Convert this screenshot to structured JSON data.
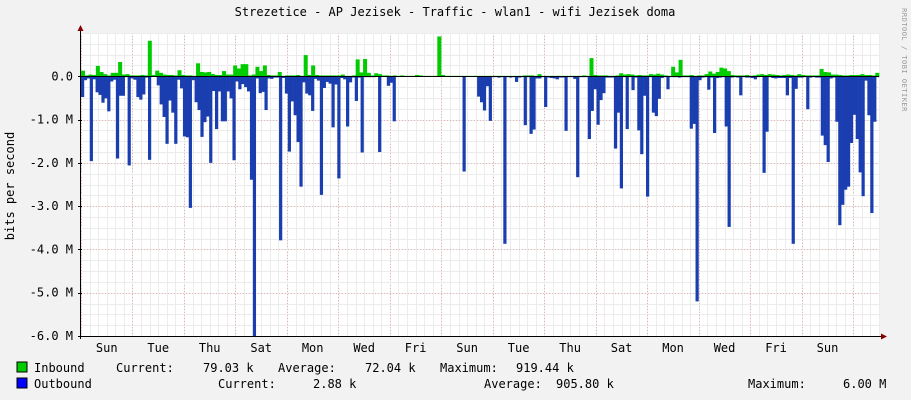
{
  "chart_data": {
    "type": "area",
    "title": "Strezetice - AP Jezisek - Traffic - wlan1 - wifi Jezisek doma",
    "ylabel": "bits per second",
    "vendor_label": "RRDTOOL / TOBI OETIKER",
    "ylim": [
      -6000000,
      1000000
    ],
    "y_ticks": [
      {
        "value": 0,
        "label": "0.0"
      },
      {
        "value": -1000000,
        "label": "-1.0 M"
      },
      {
        "value": -2000000,
        "label": "-2.0 M"
      },
      {
        "value": -3000000,
        "label": "-3.0 M"
      },
      {
        "value": -4000000,
        "label": "-4.0 M"
      },
      {
        "value": -5000000,
        "label": "-5.0 M"
      },
      {
        "value": -6000000,
        "label": "-6.0 M"
      }
    ],
    "x_range": [
      0,
      15.5
    ],
    "x_ticks": [
      {
        "value": 0.5,
        "label": "Sun"
      },
      {
        "value": 1.5,
        "label": "Tue"
      },
      {
        "value": 2.5,
        "label": "Thu"
      },
      {
        "value": 3.5,
        "label": "Sat"
      },
      {
        "value": 4.5,
        "label": "Mon"
      },
      {
        "value": 5.5,
        "label": "Wed"
      },
      {
        "value": 6.5,
        "label": "Fri"
      },
      {
        "value": 7.5,
        "label": "Sun"
      },
      {
        "value": 8.5,
        "label": "Tue"
      },
      {
        "value": 9.5,
        "label": "Thu"
      },
      {
        "value": 10.5,
        "label": "Sat"
      },
      {
        "value": 11.5,
        "label": "Mon"
      },
      {
        "value": 12.5,
        "label": "Wed"
      },
      {
        "value": 13.5,
        "label": "Fri"
      },
      {
        "value": 14.5,
        "label": "Sun"
      }
    ],
    "colors": {
      "inbound": "#00cc00",
      "outbound": "#0000ff",
      "grid": "#e6b4b4",
      "axis": "#880000"
    },
    "legend": [
      {
        "name": "Inbound",
        "current_label": "Current:",
        "current": "79.03 k",
        "average_label": "Average:",
        "average": "72.04 k",
        "maximum_label": "Maximum:",
        "maximum": "919.44 k"
      },
      {
        "name": "Outbound",
        "current_label": "Current:",
        "current": "2.88 k",
        "average_label": "Average:",
        "average": "905.80 k",
        "maximum_label": "Maximum:",
        "maximum": "6.00 M"
      }
    ],
    "series": [
      {
        "name": "Inbound",
        "values": [
          0.13,
          0.02,
          0.04,
          0.03,
          0.24,
          0.1,
          0.05,
          0.02,
          0.08,
          0.08,
          0.33,
          0.04,
          0.05,
          0.02,
          0.02,
          0.02,
          0.03,
          0.02,
          0.82,
          0.03,
          0.13,
          0.08,
          0.04,
          0.03,
          0.03,
          0.02,
          0.14,
          0.03,
          0.02,
          0.02,
          0.01,
          0.3,
          0.1,
          0.09,
          0.1,
          0.05,
          0.03,
          0.03,
          0.12,
          0.04,
          0.04,
          0.25,
          0.18,
          0.28,
          0.28,
          0.02,
          0.04,
          0.22,
          0.12,
          0.25,
          0.03,
          0.02,
          0.02,
          0.1,
          0.01,
          0.02,
          0.02,
          0.02,
          0.03,
          0.01,
          0.49,
          0.03,
          0.25,
          0.03,
          0.02,
          0.02,
          0.02,
          0.02,
          0.02,
          0.02,
          0.04,
          0.01,
          0.01,
          0.02,
          0.39,
          0.09,
          0.4,
          0.08,
          0.02,
          0.07,
          0.05,
          0.02,
          0.02,
          0.01,
          0.02,
          0.01,
          0.02,
          0.01,
          0.01,
          0.01,
          0.03,
          0.02,
          0.01,
          0.01,
          0.01,
          0.01,
          0.92,
          0.03,
          0.01,
          0.01,
          0.01,
          0.01,
          0.01,
          0.01,
          0.01,
          0.01,
          0.01,
          0.01,
          0.01,
          0.01,
          0.01,
          0.01,
          0.01,
          0.01,
          0.01,
          0.01,
          0.01,
          0.01,
          0.01,
          0.02,
          0.02,
          0.02,
          0.01,
          0.05,
          0.01,
          0.01,
          0.01,
          0.01,
          0.01,
          0.01,
          0.01,
          0.01,
          0.01,
          0.01,
          0.01,
          0.02,
          0.01,
          0.42,
          0.03,
          0.02,
          0.02,
          0.02,
          0.01,
          0.01,
          0.02,
          0.07,
          0.04,
          0.05,
          0.04,
          0.02,
          0.03,
          0.02,
          0.02,
          0.05,
          0.04,
          0.06,
          0.04,
          0.02,
          0.01,
          0.22,
          0.09,
          0.38,
          0.02,
          0.02,
          0.03,
          0.01,
          0.02,
          0.02,
          0.05,
          0.11,
          0.06,
          0.1,
          0.2,
          0.18,
          0.12,
          0.03,
          0.02,
          0.02,
          0.02,
          0.03,
          0.01,
          0.02,
          0.04,
          0.05,
          0.03,
          0.05,
          0.04,
          0.03,
          0.02,
          0.03,
          0.04,
          0.03,
          0.02,
          0.05,
          0.03,
          0.02,
          0.02,
          0.02,
          0.02,
          0.17,
          0.1,
          0.09,
          0.04,
          0.04,
          0.03,
          0.02,
          0.02,
          0.03,
          0.03,
          0.03,
          0.05,
          0.03,
          0.03,
          0.02,
          0.08
        ]
      },
      {
        "name": "Outbound",
        "values": [
          -0.48,
          -0.09,
          -0.05,
          -1.96,
          -0.07,
          -0.37,
          -0.43,
          -0.61,
          -0.51,
          -0.81,
          -0.12,
          -0.08,
          -1.9,
          -0.45,
          -0.45,
          -0.02,
          -2.06,
          -0.05,
          -0.08,
          -0.48,
          -0.54,
          -0.42,
          -0.03,
          -1.93,
          -0.01,
          -0.01,
          -0.21,
          -0.65,
          -0.94,
          -1.56,
          -0.56,
          -0.84,
          -1.56,
          -0.08,
          -0.28,
          -1.39,
          -1.41,
          -3.04,
          -0.09,
          -0.6,
          -0.78,
          -1.4,
          -1.06,
          -0.93,
          -2.0,
          -0.34,
          -1.22,
          -0.35,
          -1.04,
          -1.04,
          -0.35,
          -0.51,
          -1.94,
          -0.12,
          -0.3,
          -0.18,
          -0.25,
          -0.35,
          -2.39,
          -6.0,
          -0.05,
          -0.39,
          -0.36,
          -0.78,
          -0.05,
          -0.06,
          -0.03,
          -0.03,
          -3.79,
          -0.04,
          -0.4,
          -1.74,
          -0.58,
          -0.9,
          -1.52,
          -2.55,
          -0.14,
          -0.4,
          -0.44,
          -0.8,
          -0.06,
          -0.1,
          -2.74,
          -0.27,
          -0.13,
          -0.17,
          -1.18,
          -0.19,
          -2.36,
          -0.04,
          -0.07,
          -1.16,
          -0.14,
          -0.03,
          -0.57,
          -0.03,
          -1.76,
          -0.02,
          -0.02,
          -0.02,
          -0.02,
          -0.01,
          -1.75,
          -0.01,
          -0.01,
          -0.22,
          -0.15,
          -1.04,
          -0.01,
          -0.01,
          -0.01,
          -0.01,
          -0.01,
          -0.01,
          -0.01,
          -0.01,
          -0.01,
          -0.01,
          -0.01,
          -0.01,
          -0.01,
          -0.01,
          -0.01,
          -0.01,
          -0.01,
          -0.01,
          -0.01,
          -0.01,
          -0.01,
          -0.01,
          -0.01,
          -2.2,
          -0.01,
          -0.01,
          -0.01,
          -0.01,
          -0.47,
          -0.6,
          -0.79,
          -0.23,
          -1.03,
          -0.02,
          -0.02,
          -0.03,
          -0.02,
          -3.87,
          -0.02,
          -0.03,
          -0.02,
          -0.13,
          -0.03,
          -0.02,
          -1.13,
          -0.02,
          -1.33,
          -1.23,
          -0.05,
          -0.05,
          -0.02,
          -0.71,
          -0.03,
          -0.04,
          -0.05,
          -0.07,
          -0.03,
          -0.03,
          -1.26,
          -0.02,
          -0.02,
          -0.06,
          -2.33,
          -0.02,
          -0.02,
          -0.02,
          -1.45,
          -0.8,
          -0.3,
          -1.12,
          -0.55,
          -0.39,
          -0.03,
          -0.03,
          -0.03,
          -1.67,
          -0.84,
          -2.59,
          -0.02,
          -1.22,
          -0.02,
          -0.32,
          -0.03,
          -1.25,
          -1.8,
          -0.45,
          -2.78,
          -0.02,
          -0.84,
          -0.92,
          -0.52,
          -0.04,
          -0.02,
          -0.3,
          -0.02,
          -0.02,
          -0.02,
          -0.03,
          -0.02,
          -0.02,
          -0.02,
          -1.21,
          -1.1,
          -5.2,
          -0.09,
          -0.03,
          -0.02,
          -0.31,
          -0.03,
          -1.31,
          -0.04,
          -0.03,
          -0.02,
          -1.16,
          -3.48,
          -0.03,
          -0.02,
          -0.03,
          -0.44,
          -0.02,
          -0.03,
          -0.03,
          -0.04,
          -0.07,
          -0.02,
          -0.01,
          -2.23,
          -1.28,
          -0.02,
          -0.04,
          -0.05,
          -0.04,
          -0.04,
          -0.04,
          -0.44,
          -0.04,
          -3.87,
          -0.29,
          -0.03,
          -0.03,
          -0.02,
          -0.76,
          -0.03,
          -0.02,
          -0.03,
          -0.03,
          -1.37,
          -1.59,
          -1.98,
          -0.05,
          -0.03,
          -1.05,
          -3.44,
          -2.97,
          -2.62,
          -2.55,
          -1.54,
          -0.89,
          -1.45,
          -2.22,
          -2.77,
          -0.1,
          -0.9,
          -3.16,
          -1.05,
          -0.02
        ]
      }
    ]
  }
}
